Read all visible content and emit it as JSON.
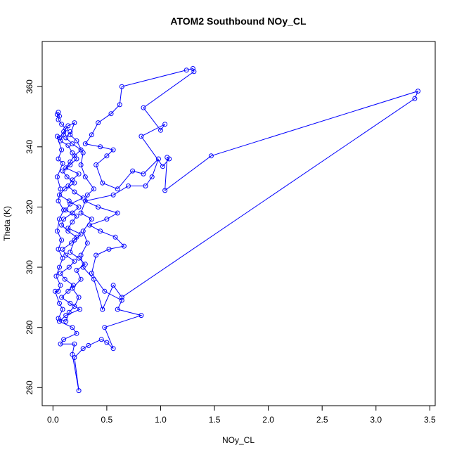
{
  "chart_data": {
    "type": "scatter",
    "title": "ATOM2 Southbound NOy_CL",
    "xlabel": "NOy_CL",
    "ylabel": "Theta (K)",
    "xlim": [
      -0.1,
      3.55
    ],
    "ylim": [
      254,
      375
    ],
    "xticks": [
      "0.0",
      "0.5",
      "1.0",
      "1.5",
      "2.0",
      "2.5",
      "3.0",
      "3.5"
    ],
    "yticks": [
      "260",
      "280",
      "300",
      "320",
      "340",
      "360"
    ],
    "grid": false,
    "legend": "none",
    "series_color": "#0000ff",
    "series": [
      {
        "values": [
          [
            0.05,
            351.5
          ],
          [
            0.04,
            350.8
          ],
          [
            0.06,
            350.2
          ],
          [
            0.05,
            349.0
          ],
          [
            0.08,
            347.5
          ],
          [
            0.12,
            346.0
          ],
          [
            0.1,
            344.0
          ],
          [
            0.07,
            342.0
          ],
          [
            0.14,
            340.5
          ],
          [
            0.18,
            338.0
          ],
          [
            0.22,
            336.0
          ],
          [
            0.16,
            334.0
          ],
          [
            0.09,
            332.0
          ],
          [
            0.13,
            330.0
          ],
          [
            0.2,
            328.0
          ],
          [
            0.11,
            326.0
          ],
          [
            0.06,
            324.0
          ],
          [
            0.15,
            322.0
          ],
          [
            0.24,
            320.0
          ],
          [
            0.18,
            318.0
          ],
          [
            0.1,
            316.0
          ],
          [
            0.08,
            314.0
          ],
          [
            0.14,
            312.0
          ],
          [
            0.22,
            310.0
          ],
          [
            0.17,
            308.0
          ],
          [
            0.09,
            306.0
          ],
          [
            0.12,
            304.0
          ],
          [
            0.2,
            302.0
          ],
          [
            0.15,
            300.0
          ],
          [
            0.07,
            298.0
          ],
          [
            0.11,
            296.0
          ],
          [
            0.19,
            294.0
          ],
          [
            0.14,
            292.0
          ],
          [
            0.08,
            290.0
          ],
          [
            0.16,
            288.0
          ],
          [
            0.25,
            286.0
          ],
          [
            0.12,
            284.0
          ],
          [
            0.06,
            282.0
          ],
          [
            0.18,
            280.0
          ],
          [
            0.22,
            278.0
          ],
          [
            0.1,
            276.0
          ],
          [
            0.07,
            274.5
          ],
          [
            0.2,
            274.5
          ],
          [
            0.18,
            271.0
          ],
          [
            0.24,
            259.0
          ],
          [
            0.2,
            270.0
          ],
          [
            0.28,
            273.0
          ],
          [
            0.33,
            274.0
          ],
          [
            0.45,
            276.0
          ],
          [
            0.5,
            275.0
          ],
          [
            0.56,
            273.0
          ],
          [
            0.48,
            280.0
          ],
          [
            0.82,
            284.0
          ],
          [
            0.6,
            286.0
          ],
          [
            0.64,
            289.0
          ],
          [
            0.48,
            292.0
          ],
          [
            0.36,
            298.0
          ],
          [
            0.4,
            304.0
          ],
          [
            0.52,
            306.0
          ],
          [
            0.66,
            307.0
          ],
          [
            0.58,
            310.0
          ],
          [
            0.44,
            312.0
          ],
          [
            0.34,
            314.0
          ],
          [
            0.5,
            316.0
          ],
          [
            0.6,
            318.0
          ],
          [
            0.42,
            320.0
          ],
          [
            0.3,
            322.0
          ],
          [
            0.56,
            324.0
          ],
          [
            0.7,
            327.0
          ],
          [
            0.86,
            327.0
          ],
          [
            0.92,
            330.0
          ],
          [
            0.98,
            336.0
          ],
          [
            0.84,
            331.0
          ],
          [
            0.74,
            332.0
          ],
          [
            0.6,
            326.0
          ],
          [
            0.46,
            328.0
          ],
          [
            0.4,
            334.0
          ],
          [
            0.5,
            337.0
          ],
          [
            0.56,
            339.0
          ],
          [
            0.44,
            340.0
          ],
          [
            0.3,
            341.0
          ],
          [
            0.36,
            344.0
          ],
          [
            0.42,
            348.0
          ],
          [
            0.54,
            351.0
          ],
          [
            0.62,
            354.0
          ],
          [
            0.64,
            360.0
          ],
          [
            1.24,
            365.5
          ],
          [
            1.3,
            366.0
          ],
          [
            1.31,
            365.0
          ],
          [
            0.84,
            353.0
          ],
          [
            1.0,
            345.5
          ],
          [
            1.04,
            347.5
          ],
          [
            0.82,
            343.5
          ],
          [
            1.02,
            333.5
          ],
          [
            1.08,
            336.0
          ],
          [
            1.06,
            336.5
          ],
          [
            1.04,
            325.5
          ],
          [
            1.47,
            337.0
          ],
          [
            3.39,
            358.5
          ],
          [
            3.36,
            356.0
          ],
          [
            0.64,
            290.0
          ],
          [
            0.56,
            294.0
          ],
          [
            0.46,
            286.0
          ],
          [
            0.38,
            296.0
          ],
          [
            0.28,
            300.0
          ],
          [
            0.26,
            304.0
          ],
          [
            0.32,
            308.0
          ],
          [
            0.28,
            312.0
          ],
          [
            0.36,
            316.0
          ],
          [
            0.26,
            318.0
          ],
          [
            0.32,
            324.0
          ],
          [
            0.38,
            326.0
          ],
          [
            0.3,
            330.0
          ],
          [
            0.26,
            334.0
          ],
          [
            0.28,
            338.0
          ],
          [
            0.22,
            342.0
          ],
          [
            0.16,
            344.0
          ],
          [
            0.2,
            348.0
          ],
          [
            0.14,
            347.0
          ],
          [
            0.1,
            345.0
          ],
          [
            0.06,
            343.0
          ],
          [
            0.04,
            343.5
          ],
          [
            0.08,
            339.0
          ],
          [
            0.05,
            336.0
          ],
          [
            0.09,
            334.5
          ],
          [
            0.04,
            330.0
          ],
          [
            0.07,
            326.0
          ],
          [
            0.05,
            322.0
          ],
          [
            0.1,
            319.0
          ],
          [
            0.06,
            316.0
          ],
          [
            0.04,
            312.0
          ],
          [
            0.08,
            309.0
          ],
          [
            0.05,
            306.0
          ],
          [
            0.09,
            303.0
          ],
          [
            0.06,
            300.0
          ],
          [
            0.03,
            297.0
          ],
          [
            0.07,
            294.0
          ],
          [
            0.05,
            292.0
          ],
          [
            0.02,
            292.0
          ],
          [
            0.06,
            288.0
          ],
          [
            0.09,
            286.0
          ],
          [
            0.05,
            283.0
          ],
          [
            0.12,
            282.0
          ],
          [
            0.15,
            285.0
          ],
          [
            0.2,
            287.0
          ],
          [
            0.24,
            290.0
          ],
          [
            0.18,
            293.0
          ],
          [
            0.26,
            296.0
          ],
          [
            0.22,
            299.0
          ],
          [
            0.3,
            301.0
          ],
          [
            0.24,
            303.0
          ],
          [
            0.16,
            305.0
          ],
          [
            0.2,
            309.0
          ],
          [
            0.26,
            311.0
          ],
          [
            0.14,
            313.0
          ],
          [
            0.18,
            315.0
          ],
          [
            0.22,
            317.0
          ],
          [
            0.12,
            319.0
          ],
          [
            0.16,
            321.0
          ],
          [
            0.28,
            323.0
          ],
          [
            0.2,
            325.0
          ],
          [
            0.14,
            327.0
          ],
          [
            0.18,
            329.0
          ],
          [
            0.24,
            331.0
          ],
          [
            0.12,
            333.0
          ],
          [
            0.16,
            335.0
          ],
          [
            0.2,
            337.0
          ],
          [
            0.26,
            339.0
          ],
          [
            0.18,
            341.0
          ],
          [
            0.12,
            343.0
          ],
          [
            0.16,
            345.0
          ]
        ]
      }
    ]
  }
}
